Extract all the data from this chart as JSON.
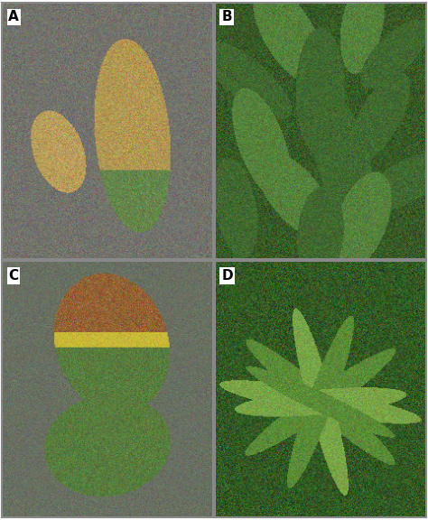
{
  "figure_width": 4.74,
  "figure_height": 5.76,
  "dpi": 100,
  "outer_bg": "#ffffff",
  "panel_labels": [
    "A",
    "B",
    "C",
    "D"
  ],
  "label_fontsize": 11,
  "label_fontweight": "bold",
  "label_color": "#000000",
  "label_bg": "#ffffff",
  "divider_color": "#888888",
  "divider_lw": 1.5,
  "panel_A": {
    "bg": [
      115,
      115,
      108
    ],
    "bg_noise": 14,
    "leaf_small_color": [
      185,
      158,
      90
    ],
    "leaf_large_color": [
      178,
      152,
      82
    ],
    "leaf_large_green": [
      100,
      135,
      75
    ]
  },
  "panel_B": {
    "bg": [
      55,
      90,
      38
    ],
    "bg_noise": 20,
    "leaf_color": [
      65,
      105,
      48
    ],
    "leaf_light": [
      85,
      130,
      60
    ],
    "branch_color": [
      80,
      60,
      35
    ]
  },
  "panel_C": {
    "bg": [
      105,
      112,
      98
    ],
    "bg_noise": 10,
    "leaf_green": [
      88,
      125,
      62
    ],
    "leaf_brown": [
      148,
      98,
      52
    ],
    "leaf_yellow_border": [
      200,
      185,
      55
    ]
  },
  "panel_D": {
    "bg": [
      50,
      90,
      35
    ],
    "bg_noise": 22,
    "leaf_color": [
      90,
      140,
      55
    ],
    "leaf_light": [
      120,
      165,
      70
    ]
  }
}
